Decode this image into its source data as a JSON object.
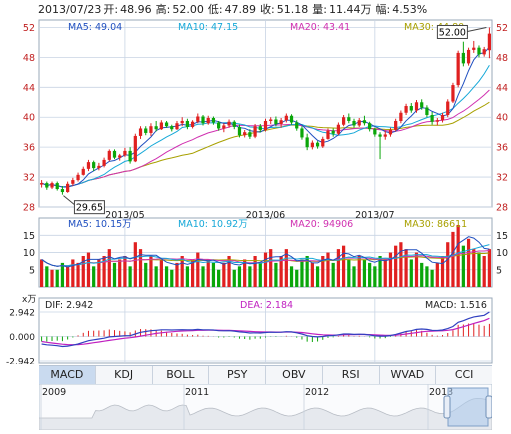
{
  "header": {
    "date": "2013/07/23",
    "open_label": "开:",
    "open": "48.96",
    "high_label": "高:",
    "high": "52.00",
    "low_label": "低:",
    "low": "47.89",
    "close_label": "收:",
    "close": "51.18",
    "vol_label": "量:",
    "vol": "11.44万",
    "chg_label": "幅:",
    "chg": "4.53%"
  },
  "price_panel": {
    "ma_labels": [
      {
        "text": "MA5: 49.04",
        "color": "#2050c0"
      },
      {
        "text": "MA10: 47.15",
        "color": "#15a8d8"
      },
      {
        "text": "MA20: 43.41",
        "color": "#d030b0"
      },
      {
        "text": "MA30: 44.80",
        "color": "#a8a000"
      }
    ],
    "max_callout": "52.00",
    "min_callout": "29.65",
    "y_ticks": [
      "52",
      "48",
      "44",
      "40",
      "36",
      "32",
      "28"
    ],
    "x_ticks": [
      "2013/05",
      "2013/06",
      "2013/07"
    ]
  },
  "volume_panel": {
    "ma_labels": [
      {
        "text": "MA5: 10.15万",
        "color": "#2050c0"
      },
      {
        "text": "MA10: 10.92万",
        "color": "#15a8d8"
      },
      {
        "text": "MA20: 94906",
        "color": "#d030b0"
      },
      {
        "text": "MA30: 86611",
        "color": "#a8a000"
      }
    ],
    "unit": "x万",
    "y_ticks": [
      "15",
      "10",
      "5"
    ]
  },
  "macd_panel": {
    "dif_label": "DIF: 2.942",
    "dea_label": "DEA: 2.184",
    "macd_label": "MACD: 1.516",
    "y_ticks": [
      "2.942",
      "0.000",
      "-2.942"
    ]
  },
  "tabs": [
    "MACD",
    "KDJ",
    "BOLL",
    "PSY",
    "OBV",
    "RSI",
    "WVAD",
    "CCI"
  ],
  "navigator": {
    "years": [
      "2009",
      "2011",
      "2012",
      "2013"
    ]
  },
  "colors": {
    "up": "#e02020",
    "down": "#0aa60a",
    "grid": "#c8d4e4",
    "axis": "#9aa8ba",
    "dif": "#3040c0",
    "dea": "#c020c0"
  },
  "chart_data": {
    "type": "candlestick",
    "x_axis_labels": [
      "2013/05",
      "2013/06",
      "2013/07"
    ],
    "price_ylim": [
      28,
      53
    ],
    "candles": [
      {
        "o": 31.0,
        "h": 31.6,
        "l": 30.6,
        "c": 31.2
      },
      {
        "o": 31.2,
        "h": 31.4,
        "l": 30.3,
        "c": 30.6
      },
      {
        "o": 30.6,
        "h": 31.4,
        "l": 30.4,
        "c": 31.2
      },
      {
        "o": 31.2,
        "h": 31.4,
        "l": 30.2,
        "c": 30.4
      },
      {
        "o": 30.4,
        "h": 30.8,
        "l": 29.65,
        "c": 30.0
      },
      {
        "o": 30.0,
        "h": 31.4,
        "l": 29.9,
        "c": 31.1
      },
      {
        "o": 31.1,
        "h": 31.9,
        "l": 30.8,
        "c": 31.6
      },
      {
        "o": 31.6,
        "h": 32.6,
        "l": 31.4,
        "c": 32.3
      },
      {
        "o": 32.3,
        "h": 33.4,
        "l": 32.2,
        "c": 33.1
      },
      {
        "o": 33.1,
        "h": 34.3,
        "l": 32.8,
        "c": 34.0
      },
      {
        "o": 34.0,
        "h": 34.2,
        "l": 32.8,
        "c": 33.2
      },
      {
        "o": 33.2,
        "h": 33.9,
        "l": 32.9,
        "c": 33.5
      },
      {
        "o": 33.5,
        "h": 34.6,
        "l": 33.3,
        "c": 34.3
      },
      {
        "o": 34.3,
        "h": 35.7,
        "l": 34.1,
        "c": 35.5
      },
      {
        "o": 35.5,
        "h": 35.7,
        "l": 34.4,
        "c": 34.6
      },
      {
        "o": 34.6,
        "h": 35.1,
        "l": 34.2,
        "c": 34.9
      },
      {
        "o": 34.9,
        "h": 35.9,
        "l": 34.7,
        "c": 35.5
      },
      {
        "o": 35.5,
        "h": 36.0,
        "l": 33.8,
        "c": 34.1
      },
      {
        "o": 34.1,
        "h": 37.8,
        "l": 34.0,
        "c": 37.5
      },
      {
        "o": 37.5,
        "h": 38.8,
        "l": 37.1,
        "c": 38.5
      },
      {
        "o": 38.5,
        "h": 38.8,
        "l": 37.6,
        "c": 37.9
      },
      {
        "o": 37.9,
        "h": 39.2,
        "l": 37.5,
        "c": 38.8
      },
      {
        "o": 38.8,
        "h": 39.5,
        "l": 38.1,
        "c": 38.4
      },
      {
        "o": 38.4,
        "h": 39.6,
        "l": 38.3,
        "c": 39.3
      },
      {
        "o": 39.3,
        "h": 39.5,
        "l": 38.6,
        "c": 38.8
      },
      {
        "o": 38.8,
        "h": 39.0,
        "l": 38.1,
        "c": 38.4
      },
      {
        "o": 38.4,
        "h": 39.5,
        "l": 38.3,
        "c": 39.2
      },
      {
        "o": 39.2,
        "h": 40.0,
        "l": 38.8,
        "c": 39.5
      },
      {
        "o": 39.5,
        "h": 39.8,
        "l": 38.4,
        "c": 38.7
      },
      {
        "o": 38.7,
        "h": 39.6,
        "l": 38.5,
        "c": 39.4
      },
      {
        "o": 39.4,
        "h": 40.5,
        "l": 39.2,
        "c": 40.1
      },
      {
        "o": 40.1,
        "h": 40.3,
        "l": 38.9,
        "c": 39.2
      },
      {
        "o": 39.2,
        "h": 40.2,
        "l": 39.0,
        "c": 39.9
      },
      {
        "o": 39.9,
        "h": 40.1,
        "l": 39.0,
        "c": 39.3
      },
      {
        "o": 39.3,
        "h": 39.5,
        "l": 38.2,
        "c": 38.5
      },
      {
        "o": 38.5,
        "h": 39.2,
        "l": 38.0,
        "c": 38.9
      },
      {
        "o": 38.9,
        "h": 39.7,
        "l": 38.6,
        "c": 39.4
      },
      {
        "o": 39.4,
        "h": 39.6,
        "l": 38.4,
        "c": 38.7
      },
      {
        "o": 38.7,
        "h": 39.0,
        "l": 37.3,
        "c": 37.6
      },
      {
        "o": 37.6,
        "h": 38.3,
        "l": 37.3,
        "c": 38.0
      },
      {
        "o": 38.0,
        "h": 38.4,
        "l": 37.1,
        "c": 37.4
      },
      {
        "o": 37.4,
        "h": 39.1,
        "l": 37.2,
        "c": 38.8
      },
      {
        "o": 38.8,
        "h": 39.1,
        "l": 38.0,
        "c": 38.3
      },
      {
        "o": 38.3,
        "h": 39.8,
        "l": 38.1,
        "c": 39.5
      },
      {
        "o": 39.5,
        "h": 40.0,
        "l": 39.1,
        "c": 39.7
      },
      {
        "o": 39.7,
        "h": 40.1,
        "l": 38.8,
        "c": 39.1
      },
      {
        "o": 39.1,
        "h": 39.9,
        "l": 38.6,
        "c": 39.6
      },
      {
        "o": 39.6,
        "h": 40.5,
        "l": 39.3,
        "c": 40.2
      },
      {
        "o": 40.2,
        "h": 40.4,
        "l": 39.0,
        "c": 39.3
      },
      {
        "o": 39.3,
        "h": 39.6,
        "l": 38.2,
        "c": 38.5
      },
      {
        "o": 38.5,
        "h": 38.8,
        "l": 37.0,
        "c": 37.3
      },
      {
        "o": 37.3,
        "h": 37.8,
        "l": 35.6,
        "c": 36.0
      },
      {
        "o": 36.0,
        "h": 36.9,
        "l": 35.7,
        "c": 36.6
      },
      {
        "o": 36.6,
        "h": 36.8,
        "l": 35.8,
        "c": 36.1
      },
      {
        "o": 36.1,
        "h": 37.4,
        "l": 35.9,
        "c": 37.1
      },
      {
        "o": 37.1,
        "h": 38.5,
        "l": 37.0,
        "c": 38.2
      },
      {
        "o": 38.2,
        "h": 38.5,
        "l": 37.4,
        "c": 37.8
      },
      {
        "o": 37.8,
        "h": 39.3,
        "l": 37.6,
        "c": 39.0
      },
      {
        "o": 39.0,
        "h": 40.3,
        "l": 38.8,
        "c": 40.0
      },
      {
        "o": 40.0,
        "h": 40.5,
        "l": 39.2,
        "c": 39.5
      },
      {
        "o": 39.5,
        "h": 39.8,
        "l": 38.6,
        "c": 38.9
      },
      {
        "o": 38.9,
        "h": 39.9,
        "l": 38.7,
        "c": 39.6
      },
      {
        "o": 39.6,
        "h": 40.2,
        "l": 38.9,
        "c": 39.2
      },
      {
        "o": 39.2,
        "h": 39.4,
        "l": 38.1,
        "c": 38.4
      },
      {
        "o": 38.4,
        "h": 38.6,
        "l": 37.4,
        "c": 37.7
      },
      {
        "o": 37.7,
        "h": 38.0,
        "l": 34.4,
        "c": 37.4
      },
      {
        "o": 37.4,
        "h": 38.2,
        "l": 37.0,
        "c": 37.7
      },
      {
        "o": 37.7,
        "h": 38.6,
        "l": 37.4,
        "c": 38.3
      },
      {
        "o": 38.3,
        "h": 39.8,
        "l": 38.1,
        "c": 39.5
      },
      {
        "o": 39.5,
        "h": 40.9,
        "l": 39.2,
        "c": 40.6
      },
      {
        "o": 40.6,
        "h": 41.8,
        "l": 40.3,
        "c": 41.5
      },
      {
        "o": 41.5,
        "h": 41.9,
        "l": 40.6,
        "c": 40.9
      },
      {
        "o": 40.9,
        "h": 42.3,
        "l": 40.6,
        "c": 42.0
      },
      {
        "o": 42.0,
        "h": 42.4,
        "l": 41.0,
        "c": 41.3
      },
      {
        "o": 41.3,
        "h": 41.6,
        "l": 40.0,
        "c": 40.3
      },
      {
        "o": 40.3,
        "h": 40.7,
        "l": 39.0,
        "c": 39.4
      },
      {
        "o": 39.4,
        "h": 39.9,
        "l": 38.9,
        "c": 39.6
      },
      {
        "o": 39.6,
        "h": 40.6,
        "l": 39.3,
        "c": 40.3
      },
      {
        "o": 40.3,
        "h": 42.4,
        "l": 40.0,
        "c": 42.1
      },
      {
        "o": 42.1,
        "h": 44.6,
        "l": 41.9,
        "c": 44.3
      },
      {
        "o": 44.3,
        "h": 48.9,
        "l": 44.0,
        "c": 48.6
      },
      {
        "o": 48.6,
        "h": 50.1,
        "l": 46.8,
        "c": 47.2
      },
      {
        "o": 47.2,
        "h": 49.3,
        "l": 46.9,
        "c": 49.0
      },
      {
        "o": 49.0,
        "h": 50.2,
        "l": 48.6,
        "c": 49.3
      },
      {
        "o": 49.3,
        "h": 49.6,
        "l": 48.0,
        "c": 48.4
      },
      {
        "o": 48.4,
        "h": 49.4,
        "l": 48.1,
        "c": 49.1
      },
      {
        "o": 48.96,
        "h": 52.0,
        "l": 47.89,
        "c": 51.18
      }
    ],
    "volume_ylim": [
      0,
      18
    ],
    "volume": [
      8,
      6,
      5,
      5,
      7,
      6,
      8,
      7,
      9,
      10,
      6,
      8,
      9,
      11,
      7,
      8,
      9,
      6,
      13,
      11,
      7,
      9,
      6,
      8,
      6,
      5,
      7,
      9,
      6,
      8,
      10,
      6,
      8,
      7,
      5,
      7,
      9,
      5,
      6,
      8,
      6,
      9,
      7,
      10,
      11,
      7,
      9,
      11,
      6,
      5,
      8,
      9,
      7,
      6,
      9,
      10,
      7,
      11,
      12,
      8,
      6,
      9,
      8,
      7,
      6,
      9,
      8,
      10,
      12,
      13,
      11,
      8,
      10,
      7,
      6,
      5,
      7,
      9,
      13,
      16,
      18,
      12,
      14,
      11,
      10,
      9,
      11
    ],
    "macd_ylim": [
      -2.942,
      2.942
    ],
    "dif": [
      -0.9,
      -1.0,
      -1.05,
      -1.1,
      -1.2,
      -1.15,
      -1.05,
      -0.9,
      -0.7,
      -0.5,
      -0.4,
      -0.3,
      -0.2,
      -0.05,
      0.0,
      0.05,
      0.1,
      0.1,
      0.3,
      0.5,
      0.6,
      0.7,
      0.75,
      0.8,
      0.8,
      0.78,
      0.8,
      0.82,
      0.8,
      0.8,
      0.85,
      0.8,
      0.8,
      0.78,
      0.7,
      0.68,
      0.7,
      0.65,
      0.55,
      0.5,
      0.42,
      0.45,
      0.42,
      0.48,
      0.52,
      0.5,
      0.52,
      0.58,
      0.55,
      0.45,
      0.3,
      0.1,
      0.0,
      -0.05,
      0.0,
      0.1,
      0.12,
      0.2,
      0.3,
      0.3,
      0.25,
      0.28,
      0.25,
      0.18,
      0.08,
      0.05,
      0.05,
      0.12,
      0.25,
      0.42,
      0.6,
      0.7,
      0.85,
      0.9,
      0.85,
      0.75,
      0.72,
      0.78,
      0.95,
      1.2,
      1.7,
      1.9,
      2.15,
      2.35,
      2.45,
      2.55,
      2.942
    ],
    "dea": [
      -0.6,
      -0.7,
      -0.78,
      -0.85,
      -0.92,
      -0.97,
      -0.99,
      -0.97,
      -0.92,
      -0.84,
      -0.75,
      -0.66,
      -0.57,
      -0.47,
      -0.38,
      -0.29,
      -0.21,
      -0.15,
      -0.06,
      0.05,
      0.16,
      0.27,
      0.37,
      0.45,
      0.52,
      0.57,
      0.62,
      0.66,
      0.69,
      0.71,
      0.74,
      0.75,
      0.76,
      0.77,
      0.76,
      0.74,
      0.73,
      0.71,
      0.68,
      0.65,
      0.61,
      0.58,
      0.55,
      0.54,
      0.54,
      0.53,
      0.53,
      0.54,
      0.54,
      0.52,
      0.48,
      0.41,
      0.33,
      0.25,
      0.2,
      0.18,
      0.17,
      0.17,
      0.2,
      0.22,
      0.23,
      0.24,
      0.24,
      0.23,
      0.2,
      0.17,
      0.15,
      0.15,
      0.17,
      0.22,
      0.3,
      0.38,
      0.47,
      0.56,
      0.62,
      0.65,
      0.67,
      0.69,
      0.74,
      0.83,
      1.0,
      1.18,
      1.37,
      1.57,
      1.74,
      1.91,
      2.184
    ]
  }
}
